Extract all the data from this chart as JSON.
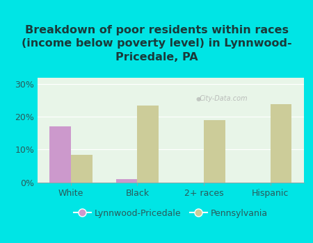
{
  "title": "Breakdown of poor residents within races\n(income below poverty level) in Lynnwood-\nPricedale, PA",
  "categories": [
    "White",
    "Black",
    "2+ races",
    "Hispanic"
  ],
  "lynnwood_values": [
    17.2,
    1.0,
    0.0,
    0.0
  ],
  "pennsylvania_values": [
    8.5,
    23.5,
    19.0,
    24.0
  ],
  "lynnwood_color": "#cc99cc",
  "pennsylvania_color": "#cccc99",
  "background_color": "#00e5e5",
  "plot_bg": "#e8f5e8",
  "ylim": [
    0,
    32
  ],
  "yticks": [
    0,
    10,
    20,
    30
  ],
  "ytick_labels": [
    "0%",
    "10%",
    "20%",
    "30%"
  ],
  "bar_width": 0.32,
  "legend_lynnwood": "Lynnwood-Pricedale",
  "legend_pennsylvania": "Pennsylvania",
  "watermark": "City-Data.com",
  "title_fontsize": 11.5,
  "tick_fontsize": 9,
  "legend_fontsize": 9,
  "title_color": "#1a3a3a",
  "tick_color": "#2a5a5a"
}
